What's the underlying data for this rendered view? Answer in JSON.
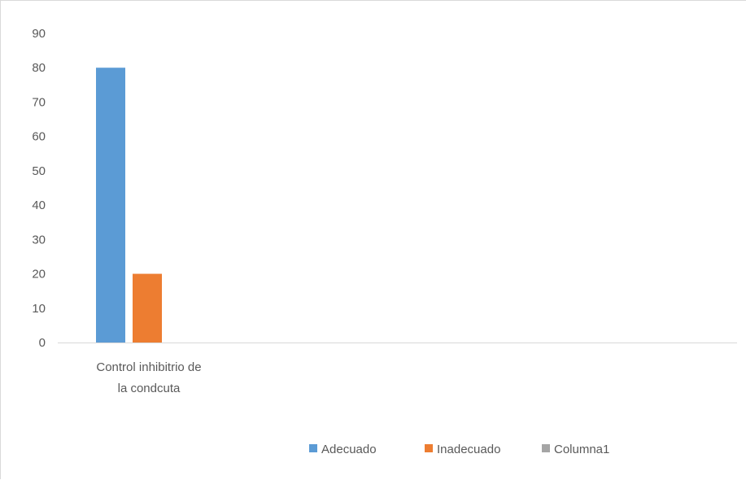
{
  "chart_data": {
    "type": "bar",
    "categories": [
      "Control inhibitrio de la condcuta"
    ],
    "category_lines": [
      [
        "Control inhibitrio de",
        "la condcuta"
      ]
    ],
    "series": [
      {
        "name": "Adecuado",
        "values": [
          80
        ],
        "color": "#5b9bd5"
      },
      {
        "name": "Inadecuado",
        "values": [
          20
        ],
        "color": "#ed7d31"
      },
      {
        "name": "Columna1",
        "values": [
          0
        ],
        "color": "#a5a5a5"
      }
    ],
    "ylim": [
      0,
      90
    ],
    "yticks": [
      0,
      10,
      20,
      30,
      40,
      50,
      60,
      70,
      80,
      90
    ],
    "grid": false,
    "legend": "bottom"
  }
}
